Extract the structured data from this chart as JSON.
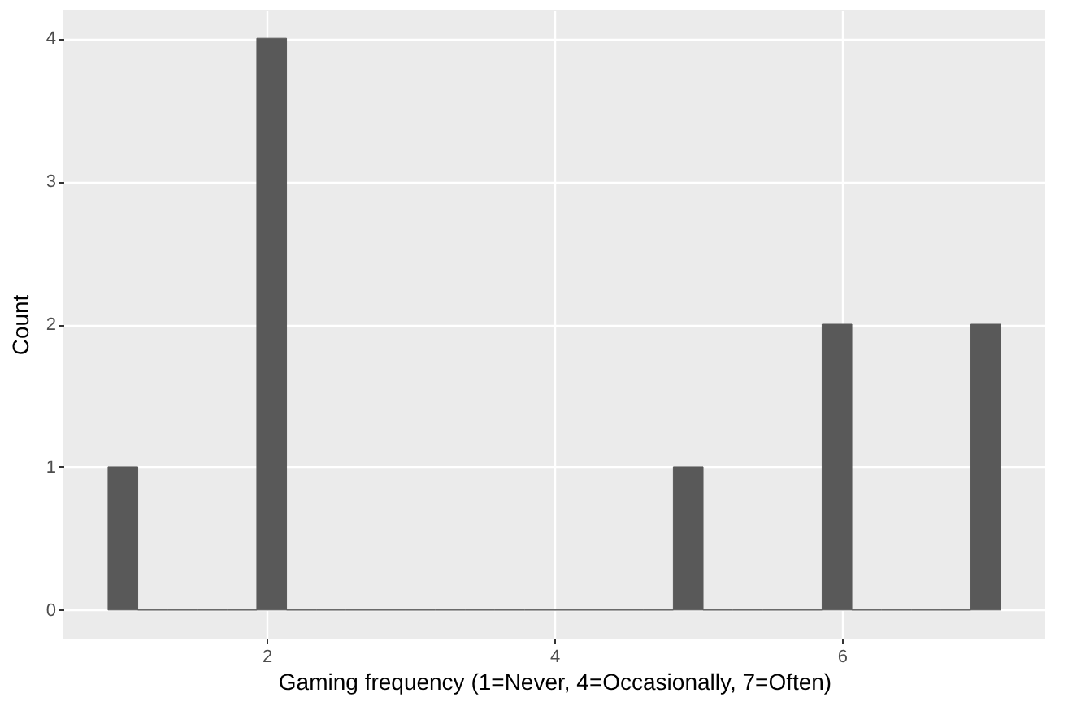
{
  "chart_data": {
    "type": "histogram",
    "xlabel": "Gaming frequency (1=Never, 4=Occasionally, 7=Often)",
    "ylabel": "Count",
    "bins": [
      0.8966,
      1.1034,
      1.3103,
      1.5172,
      1.7241,
      1.931,
      2.1379,
      2.3448,
      2.5517,
      2.7586,
      2.9655,
      3.1724,
      3.3793,
      3.5862,
      3.7931,
      4.0,
      4.2069,
      4.4138,
      4.6207,
      4.8276,
      5.0345,
      5.2414,
      5.4483,
      5.6552,
      5.8621,
      6.069,
      6.2759,
      6.4828,
      6.6897,
      6.8966,
      7.1034
    ],
    "values": [
      1,
      0,
      0,
      0,
      0,
      4,
      0,
      0,
      0,
      0,
      0,
      0,
      0,
      0,
      0,
      0,
      0,
      0,
      0,
      1,
      0,
      0,
      0,
      0,
      2,
      0,
      0,
      0,
      0,
      2
    ],
    "color": "#595959",
    "xlim": [
      0.586,
      7.414
    ],
    "xticks": [
      2,
      4,
      6
    ],
    "ylim": [
      -0.2,
      4.2
    ],
    "yticks": [
      0,
      1,
      2,
      3,
      4
    ],
    "grid": true
  }
}
